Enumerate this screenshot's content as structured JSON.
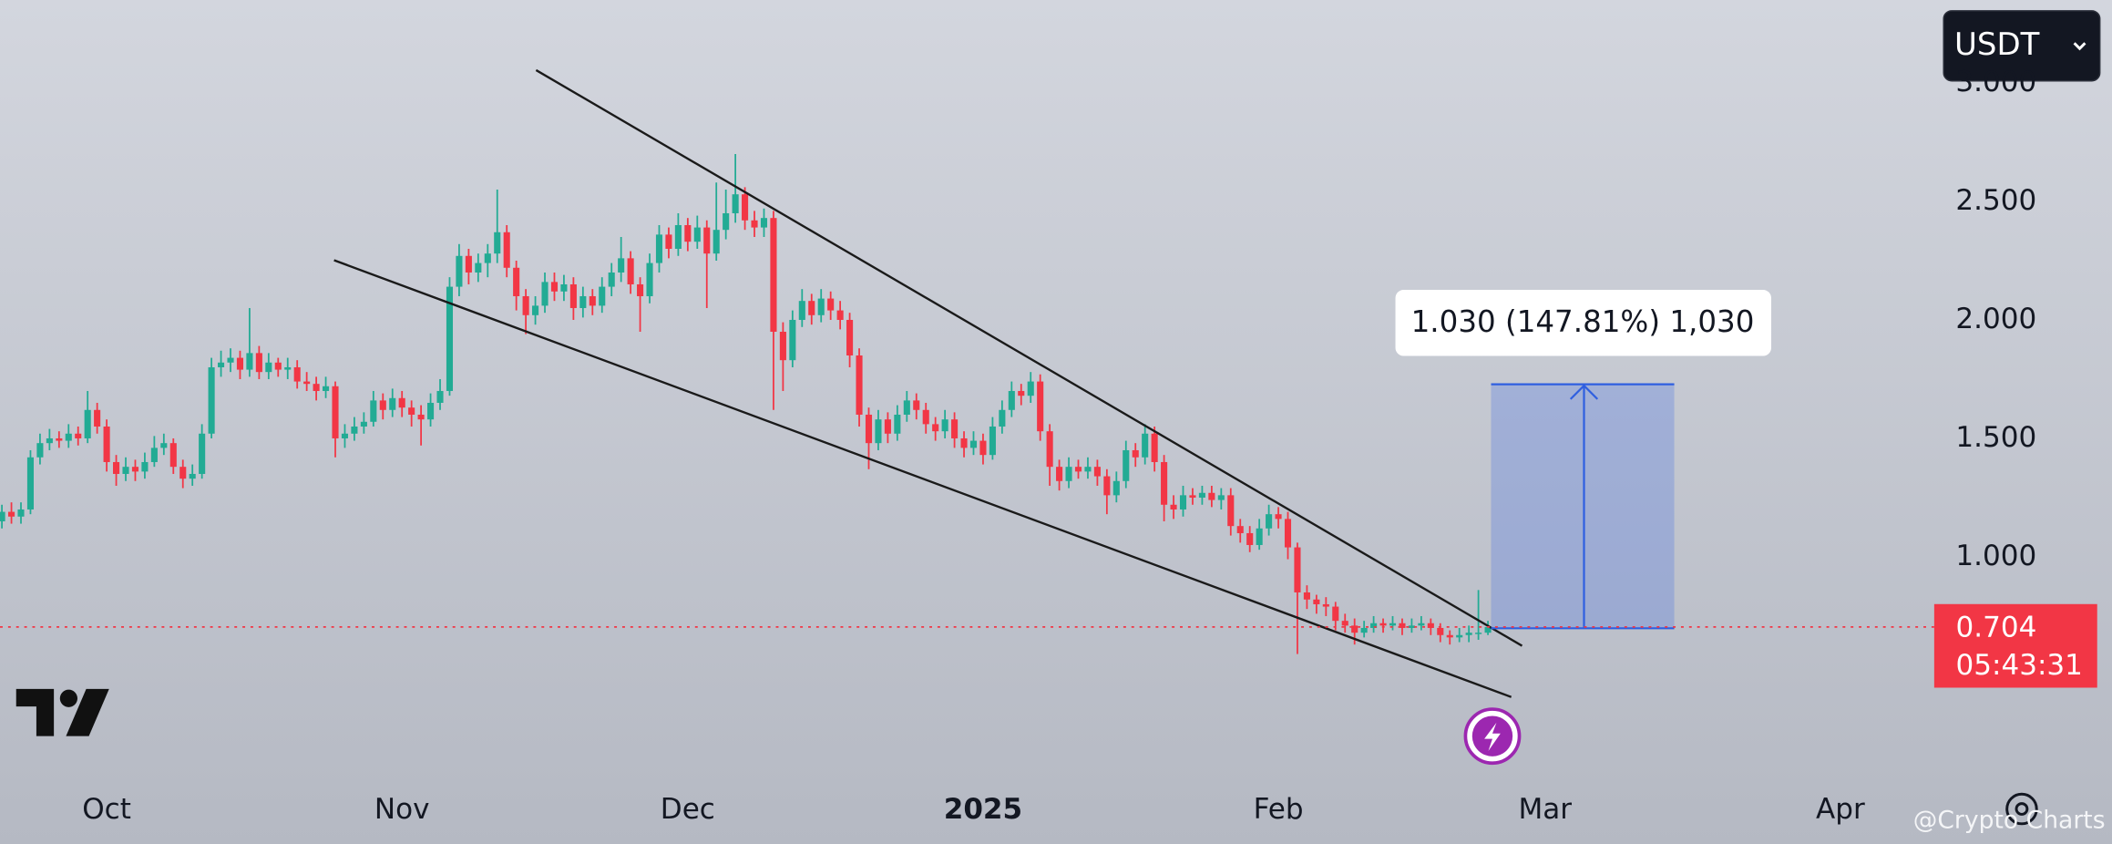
{
  "chart_data": {
    "type": "candlestick",
    "currency": "USDT",
    "open": [
      1.15,
      1.19,
      1.17,
      1.2,
      1.42,
      1.48,
      1.5,
      1.49,
      1.52,
      1.5,
      1.62,
      1.55,
      1.4,
      1.35,
      1.38,
      1.36,
      1.4,
      1.46,
      1.48,
      1.38,
      1.33,
      1.35,
      1.52,
      1.8,
      1.82,
      1.84,
      1.79,
      1.86,
      1.78,
      1.82,
      1.79,
      1.8,
      1.74,
      1.73,
      1.7,
      1.72,
      1.5,
      1.52,
      1.55,
      1.57,
      1.66,
      1.62,
      1.67,
      1.63,
      1.6,
      1.58,
      1.65,
      1.7,
      2.14,
      2.27,
      2.2,
      2.24,
      2.28,
      2.37,
      2.22,
      2.1,
      2.02,
      2.06,
      2.16,
      2.12,
      2.15,
      2.05,
      2.1,
      2.06,
      2.14,
      2.2,
      2.26,
      2.15,
      2.1,
      2.24,
      2.36,
      2.3,
      2.4,
      2.33,
      2.39,
      2.28,
      2.38,
      2.45,
      2.53,
      2.42,
      2.39,
      2.43,
      1.95,
      1.83,
      2.0,
      2.08,
      2.02,
      2.09,
      2.04,
      2.0,
      1.85,
      1.6,
      1.48,
      1.58,
      1.52,
      1.6,
      1.66,
      1.62,
      1.56,
      1.53,
      1.58,
      1.5,
      1.46,
      1.49,
      1.43,
      1.55,
      1.62,
      1.7,
      1.68,
      1.74,
      1.53,
      1.38,
      1.32,
      1.38,
      1.36,
      1.38,
      1.34,
      1.26,
      1.32,
      1.45,
      1.42,
      1.52,
      1.4,
      1.22,
      1.2,
      1.26,
      1.25,
      1.27,
      1.24,
      1.26,
      1.13,
      1.1,
      1.05,
      1.12,
      1.18,
      1.16,
      1.04,
      0.85,
      0.82,
      0.8,
      0.79,
      0.73,
      0.71,
      0.68,
      0.7,
      0.72,
      0.71,
      0.72,
      0.7,
      0.71,
      0.72,
      0.7,
      0.67,
      0.66,
      0.67,
      0.68,
      0.68
    ],
    "high": [
      1.22,
      1.23,
      1.23,
      1.45,
      1.52,
      1.54,
      1.53,
      1.56,
      1.55,
      1.7,
      1.65,
      1.58,
      1.43,
      1.42,
      1.41,
      1.44,
      1.51,
      1.52,
      1.5,
      1.41,
      1.39,
      1.56,
      1.84,
      1.87,
      1.88,
      1.87,
      2.05,
      1.89,
      1.86,
      1.84,
      1.84,
      1.83,
      1.78,
      1.76,
      1.76,
      1.74,
      1.56,
      1.59,
      1.61,
      1.7,
      1.69,
      1.71,
      1.7,
      1.66,
      1.64,
      1.69,
      1.75,
      2.18,
      2.32,
      2.3,
      2.28,
      2.32,
      2.55,
      2.4,
      2.25,
      2.13,
      2.1,
      2.2,
      2.2,
      2.19,
      2.18,
      2.14,
      2.13,
      2.18,
      2.24,
      2.35,
      2.29,
      2.18,
      2.28,
      2.4,
      2.39,
      2.45,
      2.43,
      2.44,
      2.42,
      2.58,
      2.55,
      2.7,
      2.56,
      2.46,
      2.47,
      2.46,
      1.99,
      2.04,
      2.13,
      2.11,
      2.13,
      2.12,
      2.08,
      2.03,
      1.88,
      1.63,
      1.62,
      1.61,
      1.64,
      1.7,
      1.69,
      1.65,
      1.59,
      1.62,
      1.61,
      1.53,
      1.53,
      1.52,
      1.59,
      1.66,
      1.74,
      1.73,
      1.78,
      1.77,
      1.56,
      1.41,
      1.42,
      1.41,
      1.42,
      1.41,
      1.37,
      1.36,
      1.49,
      1.48,
      1.56,
      1.55,
      1.43,
      1.26,
      1.3,
      1.29,
      1.3,
      1.3,
      1.29,
      1.29,
      1.16,
      1.13,
      1.16,
      1.22,
      1.21,
      1.19,
      1.06,
      0.88,
      0.84,
      0.83,
      0.81,
      0.76,
      0.74,
      0.73,
      0.75,
      0.74,
      0.75,
      0.74,
      0.74,
      0.75,
      0.74,
      0.72,
      0.69,
      0.7,
      0.71,
      0.86,
      0.73
    ],
    "low": [
      1.12,
      1.14,
      1.14,
      1.18,
      1.39,
      1.45,
      1.46,
      1.46,
      1.47,
      1.48,
      1.52,
      1.36,
      1.3,
      1.32,
      1.32,
      1.33,
      1.38,
      1.43,
      1.35,
      1.29,
      1.3,
      1.33,
      1.5,
      1.76,
      1.78,
      1.75,
      1.76,
      1.75,
      1.75,
      1.76,
      1.75,
      1.71,
      1.7,
      1.66,
      1.67,
      1.42,
      1.46,
      1.49,
      1.52,
      1.55,
      1.58,
      1.59,
      1.59,
      1.55,
      1.47,
      1.55,
      1.62,
      1.68,
      2.1,
      2.15,
      2.16,
      2.18,
      2.24,
      2.18,
      2.04,
      1.94,
      1.98,
      2.03,
      2.08,
      2.08,
      2.0,
      2.01,
      2.02,
      2.03,
      2.1,
      2.16,
      2.11,
      1.95,
      2.07,
      2.2,
      2.26,
      2.27,
      2.29,
      2.3,
      2.05,
      2.25,
      2.34,
      2.41,
      2.38,
      2.35,
      2.35,
      1.62,
      1.7,
      1.8,
      1.97,
      1.98,
      1.99,
      2.0,
      1.96,
      1.8,
      1.55,
      1.37,
      1.45,
      1.48,
      1.49,
      1.57,
      1.58,
      1.52,
      1.49,
      1.5,
      1.46,
      1.42,
      1.43,
      1.39,
      1.41,
      1.52,
      1.59,
      1.64,
      1.65,
      1.49,
      1.3,
      1.28,
      1.29,
      1.33,
      1.33,
      1.3,
      1.18,
      1.23,
      1.29,
      1.38,
      1.39,
      1.36,
      1.15,
      1.16,
      1.17,
      1.22,
      1.22,
      1.21,
      1.2,
      1.09,
      1.06,
      1.02,
      1.03,
      1.09,
      1.12,
      0.99,
      0.59,
      0.78,
      0.76,
      0.75,
      0.69,
      0.68,
      0.63,
      0.66,
      0.68,
      0.68,
      0.69,
      0.67,
      0.68,
      0.69,
      0.67,
      0.64,
      0.63,
      0.64,
      0.64,
      0.65,
      0.67
    ],
    "close": [
      1.19,
      1.17,
      1.2,
      1.42,
      1.48,
      1.5,
      1.49,
      1.52,
      1.5,
      1.62,
      1.55,
      1.4,
      1.35,
      1.38,
      1.36,
      1.4,
      1.46,
      1.48,
      1.38,
      1.33,
      1.35,
      1.52,
      1.8,
      1.82,
      1.84,
      1.79,
      1.86,
      1.78,
      1.82,
      1.79,
      1.8,
      1.74,
      1.73,
      1.7,
      1.72,
      1.5,
      1.52,
      1.55,
      1.57,
      1.66,
      1.62,
      1.67,
      1.63,
      1.6,
      1.58,
      1.65,
      1.7,
      2.14,
      2.27,
      2.2,
      2.24,
      2.28,
      2.37,
      2.22,
      2.1,
      2.02,
      2.06,
      2.16,
      2.12,
      2.15,
      2.05,
      2.1,
      2.06,
      2.14,
      2.2,
      2.26,
      2.15,
      2.1,
      2.24,
      2.36,
      2.3,
      2.4,
      2.33,
      2.39,
      2.28,
      2.38,
      2.45,
      2.53,
      2.42,
      2.39,
      2.43,
      1.95,
      1.83,
      2.0,
      2.08,
      2.02,
      2.09,
      2.04,
      2.0,
      1.85,
      1.6,
      1.48,
      1.58,
      1.52,
      1.6,
      1.66,
      1.62,
      1.56,
      1.53,
      1.58,
      1.5,
      1.46,
      1.49,
      1.43,
      1.55,
      1.62,
      1.7,
      1.68,
      1.74,
      1.53,
      1.38,
      1.32,
      1.38,
      1.36,
      1.38,
      1.34,
      1.26,
      1.32,
      1.45,
      1.42,
      1.52,
      1.4,
      1.22,
      1.2,
      1.26,
      1.25,
      1.27,
      1.24,
      1.26,
      1.13,
      1.1,
      1.05,
      1.12,
      1.18,
      1.16,
      1.04,
      0.85,
      0.82,
      0.8,
      0.79,
      0.73,
      0.71,
      0.68,
      0.7,
      0.72,
      0.71,
      0.72,
      0.7,
      0.71,
      0.72,
      0.7,
      0.67,
      0.66,
      0.67,
      0.68,
      0.68,
      0.704
    ],
    "up_color": "#22ab94",
    "down_color": "#f23645",
    "xlim": [
      -0.2,
      202
    ],
    "xticks": [
      {
        "value": 11,
        "label": "Oct"
      },
      {
        "value": 42,
        "label": "Nov"
      },
      {
        "value": 72,
        "label": "Dec"
      },
      {
        "value": 103,
        "label": "2025"
      },
      {
        "value": 134,
        "label": "Feb"
      },
      {
        "value": 162,
        "label": "Mar"
      },
      {
        "value": 193,
        "label": "Apr"
      }
    ],
    "ylim": [
      0.05,
      3.35
    ],
    "yticks": [
      {
        "value": 1,
        "label": "1.000"
      },
      {
        "value": 1.5,
        "label": "1.500"
      },
      {
        "value": 2,
        "label": "2.000"
      },
      {
        "value": 2.5,
        "label": "2.500"
      },
      {
        "value": 3,
        "label": "3.000"
      }
    ],
    "last_price": 0.704,
    "countdown": "05:43:31",
    "measure_label": "1.030 (147.81%) 1,030",
    "watermark": "@Crypto Charts"
  }
}
